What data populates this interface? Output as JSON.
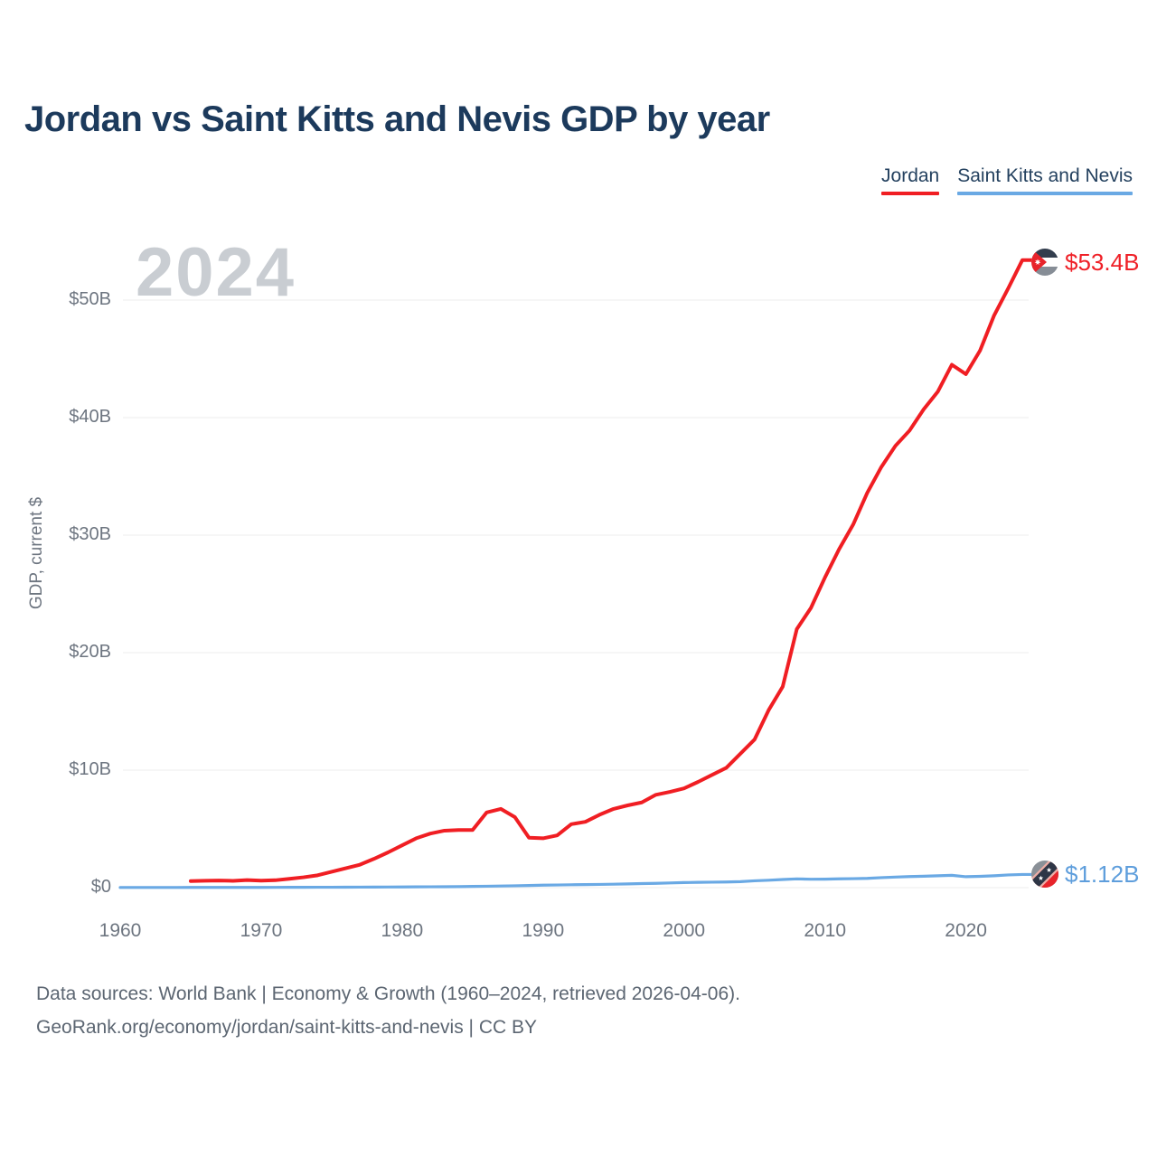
{
  "title": "Jordan vs Saint Kitts and Nevis GDP by year",
  "watermark_year": "2024",
  "legend": {
    "items": [
      {
        "label": "Jordan",
        "color": "#f01e23"
      },
      {
        "label": "Saint Kitts and Nevis",
        "color": "#6aa9e4"
      }
    ]
  },
  "footer": {
    "line1": "Data sources: World Bank | Economy & Growth (1960–2024, retrieved 2026-04-06).",
    "line2": "GeoRank.org/economy/jordan/saint-kitts-and-nevis | CC BY"
  },
  "icons": {
    "jordan_flag": "jordan-flag-icon",
    "skn_flag": "saint-kitts-and-nevis-flag-icon"
  },
  "chart_data": {
    "type": "line",
    "title": "Jordan vs Saint Kitts and Nevis GDP by year",
    "xlabel": "",
    "ylabel": "GDP, current $",
    "x_range": [
      1960,
      2024
    ],
    "ylim": [
      0,
      53.5
    ],
    "grid": "horizontal",
    "legend_position": "top-right",
    "units": "current US$ billions",
    "y_ticks": [
      {
        "v": 0,
        "label": "$0"
      },
      {
        "v": 10,
        "label": "$10B"
      },
      {
        "v": 20,
        "label": "$20B"
      },
      {
        "v": 30,
        "label": "$30B"
      },
      {
        "v": 40,
        "label": "$40B"
      },
      {
        "v": 50,
        "label": "$50B"
      }
    ],
    "x_ticks": [
      {
        "v": 1960,
        "label": "1960"
      },
      {
        "v": 1970,
        "label": "1970"
      },
      {
        "v": 1980,
        "label": "1980"
      },
      {
        "v": 1990,
        "label": "1990"
      },
      {
        "v": 2000,
        "label": "2000"
      },
      {
        "v": 2010,
        "label": "2010"
      },
      {
        "v": 2020,
        "label": "2020"
      }
    ],
    "series": [
      {
        "name": "Jordan",
        "color": "#f01e23",
        "stroke_width": 4,
        "end_label": "$53.4B",
        "end_value_billions": 53.4,
        "years": [
          1965,
          1966,
          1967,
          1968,
          1969,
          1970,
          1971,
          1972,
          1973,
          1974,
          1975,
          1976,
          1977,
          1978,
          1979,
          1980,
          1981,
          1982,
          1983,
          1984,
          1985,
          1986,
          1987,
          1988,
          1989,
          1990,
          1991,
          1992,
          1993,
          1994,
          1995,
          1996,
          1997,
          1998,
          1999,
          2000,
          2001,
          2002,
          2003,
          2004,
          2005,
          2006,
          2007,
          2008,
          2009,
          2010,
          2011,
          2012,
          2013,
          2014,
          2015,
          2016,
          2017,
          2018,
          2019,
          2020,
          2021,
          2022,
          2023,
          2024
        ],
        "values": [
          0.56,
          0.59,
          0.61,
          0.58,
          0.64,
          0.6,
          0.63,
          0.75,
          0.88,
          1.05,
          1.35,
          1.65,
          1.95,
          2.45,
          3.0,
          3.6,
          4.2,
          4.6,
          4.85,
          4.9,
          4.9,
          6.4,
          6.7,
          6.0,
          4.25,
          4.2,
          4.45,
          5.4,
          5.6,
          6.2,
          6.7,
          7.0,
          7.25,
          7.9,
          8.15,
          8.45,
          9.0,
          9.6,
          10.2,
          11.4,
          12.6,
          15.1,
          17.1,
          22.0,
          23.8,
          26.4,
          28.8,
          30.9,
          33.6,
          35.8,
          37.6,
          38.9,
          40.7,
          42.2,
          44.5,
          43.7,
          45.7,
          48.7,
          51.0,
          53.4
        ]
      },
      {
        "name": "Saint Kitts and Nevis",
        "color": "#6aa9e4",
        "stroke_width": 3.2,
        "end_label": "$1.12B",
        "end_value_billions": 1.12,
        "years": [
          1960,
          1961,
          1962,
          1963,
          1964,
          1965,
          1966,
          1967,
          1968,
          1969,
          1970,
          1971,
          1972,
          1973,
          1974,
          1975,
          1976,
          1977,
          1978,
          1979,
          1980,
          1981,
          1982,
          1983,
          1984,
          1985,
          1986,
          1987,
          1988,
          1989,
          1990,
          1991,
          1992,
          1993,
          1994,
          1995,
          1996,
          1997,
          1998,
          1999,
          2000,
          2001,
          2002,
          2003,
          2004,
          2005,
          2006,
          2007,
          2008,
          2009,
          2010,
          2011,
          2012,
          2013,
          2014,
          2015,
          2016,
          2017,
          2018,
          2019,
          2020,
          2021,
          2022,
          2023,
          2024
        ],
        "values": [
          0.013,
          0.013,
          0.014,
          0.015,
          0.016,
          0.017,
          0.018,
          0.019,
          0.02,
          0.021,
          0.022,
          0.024,
          0.026,
          0.029,
          0.033,
          0.035,
          0.038,
          0.042,
          0.048,
          0.053,
          0.058,
          0.066,
          0.072,
          0.077,
          0.086,
          0.103,
          0.12,
          0.14,
          0.16,
          0.18,
          0.21,
          0.225,
          0.245,
          0.26,
          0.275,
          0.295,
          0.32,
          0.345,
          0.365,
          0.4,
          0.43,
          0.45,
          0.465,
          0.48,
          0.51,
          0.58,
          0.63,
          0.69,
          0.745,
          0.715,
          0.72,
          0.75,
          0.765,
          0.79,
          0.85,
          0.9,
          0.94,
          0.97,
          1.01,
          1.05,
          0.93,
          0.96,
          1.01,
          1.08,
          1.12
        ]
      }
    ]
  }
}
